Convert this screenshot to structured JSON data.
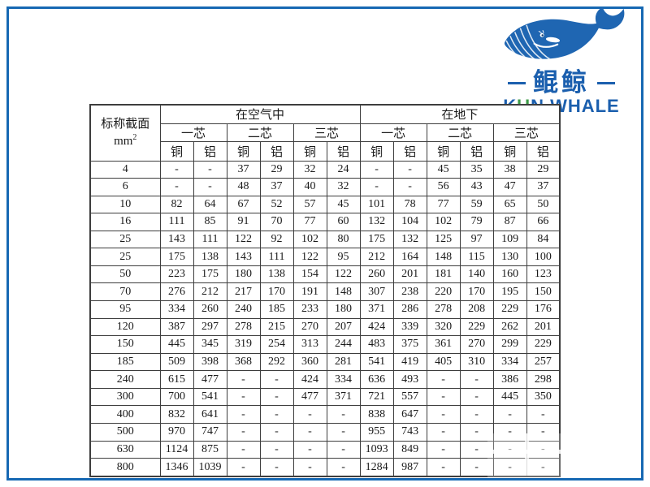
{
  "frame": {
    "color": "#1668b3"
  },
  "logo": {
    "brand_cn": "鲲鲸",
    "brand_en_k": "K",
    "brand_en_u": "U",
    "brand_en_rest": "N WHALE",
    "blue": "#1b5fae",
    "green": "#3d9b47"
  },
  "table": {
    "corner": {
      "line1": "标称截面",
      "unit_base": "mm",
      "unit_sup": "2"
    },
    "group_headers": [
      "在空气中",
      "在地下"
    ],
    "core_headers": [
      "一芯",
      "二芯",
      "三芯",
      "一芯",
      "二芯",
      "三芯"
    ],
    "material_headers": [
      "铜",
      "铝",
      "铜",
      "铝",
      "铜",
      "铝",
      "铜",
      "铝",
      "铜",
      "铝",
      "铜",
      "铝"
    ],
    "rows": [
      {
        "section": "4",
        "values": [
          "-",
          "-",
          "37",
          "29",
          "32",
          "24",
          "-",
          "-",
          "45",
          "35",
          "38",
          "29"
        ]
      },
      {
        "section": "6",
        "values": [
          "-",
          "-",
          "48",
          "37",
          "40",
          "32",
          "-",
          "-",
          "56",
          "43",
          "47",
          "37"
        ]
      },
      {
        "section": "10",
        "values": [
          "82",
          "64",
          "67",
          "52",
          "57",
          "45",
          "101",
          "78",
          "77",
          "59",
          "65",
          "50"
        ]
      },
      {
        "section": "16",
        "values": [
          "111",
          "85",
          "91",
          "70",
          "77",
          "60",
          "132",
          "104",
          "102",
          "79",
          "87",
          "66"
        ]
      },
      {
        "section": "25",
        "values": [
          "143",
          "111",
          "122",
          "92",
          "102",
          "80",
          "175",
          "132",
          "125",
          "97",
          "109",
          "84"
        ]
      },
      {
        "section": "25",
        "values": [
          "175",
          "138",
          "143",
          "111",
          "122",
          "95",
          "212",
          "164",
          "148",
          "115",
          "130",
          "100"
        ]
      },
      {
        "section": "50",
        "values": [
          "223",
          "175",
          "180",
          "138",
          "154",
          "122",
          "260",
          "201",
          "181",
          "140",
          "160",
          "123"
        ]
      },
      {
        "section": "70",
        "values": [
          "276",
          "212",
          "217",
          "170",
          "191",
          "148",
          "307",
          "238",
          "220",
          "170",
          "195",
          "150"
        ]
      },
      {
        "section": "95",
        "values": [
          "334",
          "260",
          "240",
          "185",
          "233",
          "180",
          "371",
          "286",
          "278",
          "208",
          "229",
          "176"
        ]
      },
      {
        "section": "120",
        "values": [
          "387",
          "297",
          "278",
          "215",
          "270",
          "207",
          "424",
          "339",
          "320",
          "229",
          "262",
          "201"
        ]
      },
      {
        "section": "150",
        "values": [
          "445",
          "345",
          "319",
          "254",
          "313",
          "244",
          "483",
          "375",
          "361",
          "270",
          "299",
          "229"
        ]
      },
      {
        "section": "185",
        "values": [
          "509",
          "398",
          "368",
          "292",
          "360",
          "281",
          "541",
          "419",
          "405",
          "310",
          "334",
          "257"
        ]
      },
      {
        "section": "240",
        "values": [
          "615",
          "477",
          "-",
          "-",
          "424",
          "334",
          "636",
          "493",
          "-",
          "-",
          "386",
          "298"
        ]
      },
      {
        "section": "300",
        "values": [
          "700",
          "541",
          "-",
          "-",
          "477",
          "371",
          "721",
          "557",
          "-",
          "-",
          "445",
          "350"
        ]
      },
      {
        "section": "400",
        "values": [
          "832",
          "641",
          "-",
          "-",
          "-",
          "-",
          "838",
          "647",
          "-",
          "-",
          "-",
          "-"
        ]
      },
      {
        "section": "500",
        "values": [
          "970",
          "747",
          "-",
          "-",
          "-",
          "-",
          "955",
          "743",
          "-",
          "-",
          "-",
          "-"
        ]
      },
      {
        "section": "630",
        "values": [
          "1124",
          "875",
          "-",
          "-",
          "-",
          "-",
          "1093",
          "849",
          "-",
          "-",
          "-",
          "-"
        ]
      },
      {
        "section": "800",
        "values": [
          "1346",
          "1039",
          "-",
          "-",
          "-",
          "-",
          "1284",
          "987",
          "-",
          "-",
          "-",
          "-"
        ]
      }
    ]
  }
}
